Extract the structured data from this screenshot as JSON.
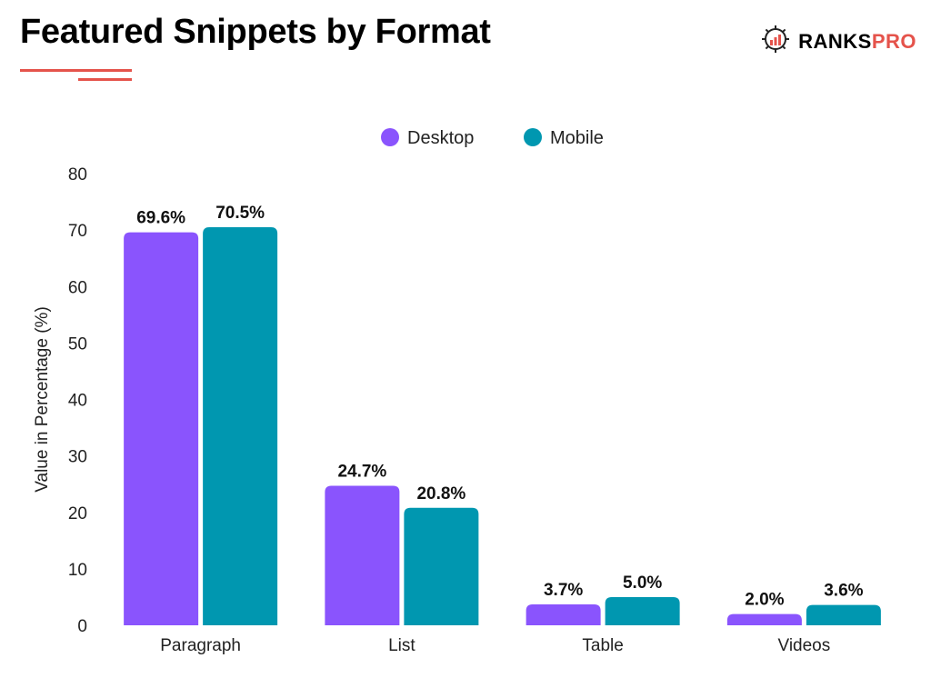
{
  "header": {
    "title": "Featured Snippets by Format",
    "brand_main": "RANKS",
    "brand_accent": "PRO",
    "brand_logo_icon": "gear-chart-icon"
  },
  "colors": {
    "desktop": "#8a54fd",
    "mobile": "#0097b0",
    "accent": "#e5534b"
  },
  "chart_data": {
    "type": "bar",
    "title": "Featured Snippets by Format",
    "xlabel": "",
    "ylabel": "Value in Percentage (%)",
    "ylim": [
      0,
      80
    ],
    "yticks": [
      0,
      10,
      20,
      30,
      40,
      50,
      60,
      70,
      80
    ],
    "categories": [
      "Paragraph",
      "List",
      "Table",
      "Videos"
    ],
    "legend_position": "top-center",
    "grid": false,
    "series": [
      {
        "name": "Desktop",
        "values": [
          69.6,
          24.7,
          3.7,
          2.0
        ],
        "labels": [
          "69.6%",
          "24.7%",
          "3.7%",
          "2.0%"
        ]
      },
      {
        "name": "Mobile",
        "values": [
          70.5,
          20.8,
          5.0,
          3.6
        ],
        "labels": [
          "70.5%",
          "20.8%",
          "5.0%",
          "3.6%"
        ]
      }
    ]
  }
}
